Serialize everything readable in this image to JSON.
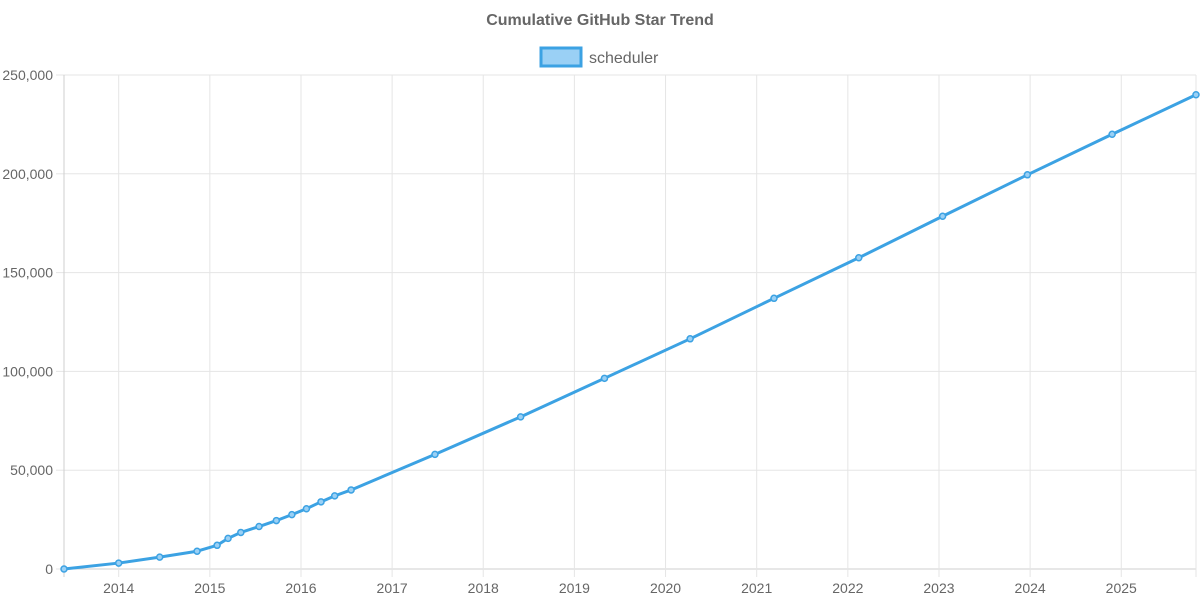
{
  "chart_data": {
    "type": "line",
    "title": "Cumulative GitHub Star Trend",
    "xlabel": "",
    "ylabel": "",
    "x_axis": {
      "min": 2013.4,
      "max": 2025.82,
      "ticks": [
        2014,
        2015,
        2016,
        2017,
        2018,
        2019,
        2020,
        2021,
        2022,
        2023,
        2024,
        2025
      ],
      "tick_labels": [
        "2014",
        "2015",
        "2016",
        "2017",
        "2018",
        "2019",
        "2020",
        "2021",
        "2022",
        "2023",
        "2024",
        "2025"
      ]
    },
    "y_axis": {
      "min": 0,
      "max": 250000,
      "ticks": [
        0,
        50000,
        100000,
        150000,
        200000,
        250000
      ],
      "tick_labels": [
        "0",
        "50,000",
        "100,000",
        "150,000",
        "200,000",
        "250,000"
      ]
    },
    "grid": true,
    "legend_position": "top-center",
    "series": [
      {
        "name": "scheduler",
        "color": "#3ca2e3",
        "fill_color": "#9ad0f5",
        "x": [
          2013.4,
          2014.0,
          2014.45,
          2014.86,
          2015.08,
          2015.2,
          2015.34,
          2015.54,
          2015.73,
          2015.9,
          2016.06,
          2016.22,
          2016.37,
          2016.55,
          2017.47,
          2018.41,
          2019.33,
          2020.27,
          2021.19,
          2022.12,
          2023.04,
          2023.97,
          2024.9,
          2025.82
        ],
        "values": [
          0,
          3000,
          6000,
          9000,
          12000,
          15500,
          18500,
          21500,
          24500,
          27500,
          30500,
          34000,
          37000,
          40000,
          58000,
          77000,
          96500,
          116500,
          137000,
          157500,
          178500,
          199500,
          220000,
          240000
        ]
      }
    ]
  }
}
